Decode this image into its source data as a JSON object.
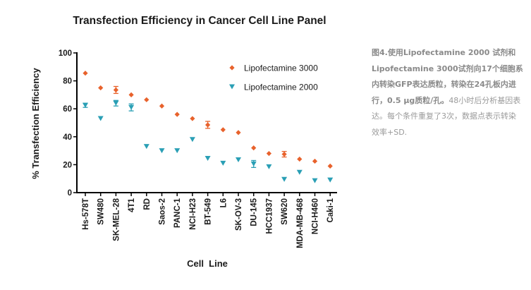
{
  "chart_data": {
    "type": "scatter",
    "title": "Transfection Efficiency in Cancer Cell Line Panel",
    "xlabel": "Cell  Line",
    "ylabel": "% Transfection Efficiency",
    "ylim": [
      0,
      100
    ],
    "yticks": [
      0,
      20,
      40,
      60,
      80,
      100
    ],
    "categories": [
      "Hs-578T",
      "SW480",
      "SK-MEL-28",
      "4T1",
      "RD",
      "Saos-2",
      "PANC-1",
      "NCI-H23",
      "BT-549",
      "L6",
      "SK-OV-3",
      "DU-145",
      "HCC1937",
      "SW620",
      "MDA-MB-468",
      "NCI-H460",
      "Caki-1"
    ],
    "legend_position": "top-right",
    "series": [
      {
        "name": "Lipofectamine  3000",
        "marker": "diamond",
        "color": "#e8622c",
        "values": [
          85.5,
          75,
          73.5,
          70,
          66.5,
          62,
          56,
          53,
          48.5,
          45,
          43,
          32,
          28,
          27.5,
          24,
          22.5,
          19
        ],
        "errors": [
          0,
          0,
          2.5,
          0,
          0,
          0,
          0,
          0,
          2.5,
          0,
          0,
          0,
          0,
          2,
          0,
          0,
          0
        ]
      },
      {
        "name": "Lipofectamine  2000",
        "marker": "triangle-down",
        "color": "#2a9fb5",
        "values": [
          62.5,
          53,
          64,
          61,
          33,
          30,
          30,
          38,
          24.5,
          21,
          23.5,
          20.5,
          18.5,
          9.5,
          14.5,
          8.5,
          9
        ],
        "errors": [
          1.5,
          0,
          2,
          2.5,
          0,
          0,
          0,
          0,
          0,
          0,
          0,
          2.5,
          0,
          0,
          0,
          0,
          0
        ]
      }
    ]
  },
  "caption": {
    "bold_text": "图4.使用Lipofectamine 2000 试剂和Lipofectamine 3000试剂向17个细胞系内转染GFP表达质粒，转染在24孔板内进行，0.5 μg质粒/孔。",
    "normal_text": "48小时后分析基因表达。每个条件重复了3次，数据点表示转染效率+SD."
  }
}
